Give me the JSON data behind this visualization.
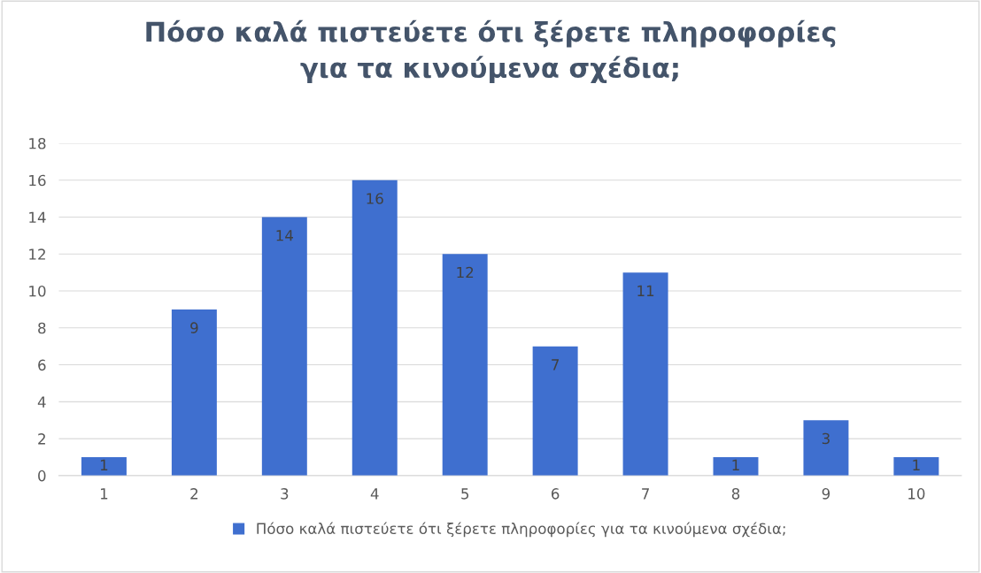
{
  "chart_data": {
    "type": "bar",
    "title": "Πόσο καλά πιστεύετε ότι ξέρετε πληροφορίες\nγια τα κινούμενα σχέδια;",
    "categories": [
      "1",
      "2",
      "3",
      "4",
      "5",
      "6",
      "7",
      "8",
      "9",
      "10"
    ],
    "series": [
      {
        "name": "Πόσο καλά πιστεύετε ότι ξέρετε πληροφορίες για τα κινούμενα σχέδια;",
        "color": "#3f6fcf",
        "values": [
          1,
          9,
          14,
          16,
          12,
          7,
          11,
          1,
          3,
          1
        ]
      }
    ],
    "ylim": [
      0,
      18
    ],
    "yticks": [
      0,
      2,
      4,
      6,
      8,
      10,
      12,
      14,
      16,
      18
    ],
    "grid": "y",
    "legend": "bottom",
    "data_labels": true
  }
}
